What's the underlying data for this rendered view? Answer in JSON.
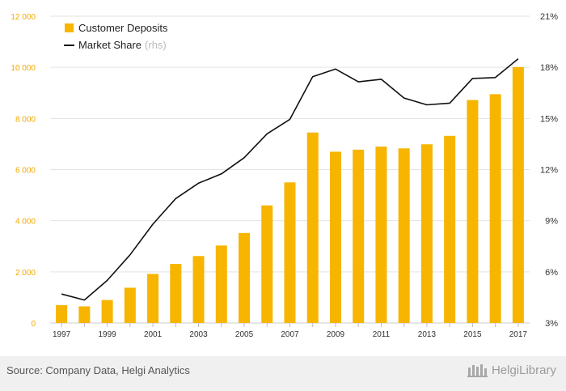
{
  "chart_data": {
    "type": "bar+line",
    "categories": [
      "1997",
      "1998",
      "1999",
      "2000",
      "2001",
      "2002",
      "2003",
      "2004",
      "2005",
      "2006",
      "2007",
      "2008",
      "2009",
      "2010",
      "2011",
      "2012",
      "2013",
      "2014",
      "2015",
      "2016",
      "2017"
    ],
    "x_tick_labels": [
      "1997",
      "1999",
      "2001",
      "2003",
      "2005",
      "2007",
      "2009",
      "2011",
      "2013",
      "2015",
      "2017"
    ],
    "series": [
      {
        "name": "Customer Deposits",
        "type": "bar",
        "axis": "left",
        "values": [
          700,
          650,
          900,
          1380,
          1920,
          2310,
          2620,
          3030,
          3520,
          4600,
          5500,
          7450,
          6700,
          6780,
          6900,
          6830,
          6990,
          7320,
          8720,
          8950,
          10010
        ],
        "color": "#F7B500"
      },
      {
        "name": "Market Share",
        "type": "line",
        "axis": "right",
        "values": [
          4.7,
          4.35,
          5.5,
          7.0,
          8.8,
          10.3,
          11.2,
          11.75,
          12.7,
          14.1,
          14.95,
          17.45,
          17.9,
          17.15,
          17.3,
          16.2,
          15.8,
          15.9,
          17.35,
          17.4,
          18.5
        ],
        "color": "#111111"
      }
    ],
    "y_left": {
      "min": 0,
      "max": 12000,
      "ticks": [
        0,
        2000,
        4000,
        6000,
        8000,
        10000,
        12000
      ],
      "tick_labels": [
        "0",
        "2 000",
        "4 000",
        "6 000",
        "8 000",
        "10 000",
        "12 000"
      ]
    },
    "y_right": {
      "min": 3,
      "max": 21,
      "ticks": [
        3,
        6,
        9,
        12,
        15,
        18,
        21
      ],
      "tick_labels": [
        "3%",
        "6%",
        "9%",
        "12%",
        "15%",
        "18%",
        "21%"
      ]
    },
    "legend": {
      "placement": "top-left",
      "items": [
        {
          "label": "Customer Deposits",
          "suffix": ""
        },
        {
          "label": "Market Share",
          "suffix": "(rhs)"
        }
      ]
    },
    "grid": true,
    "left_tick_color": "#F2A900",
    "axis_text_color": "#333333",
    "grid_color": "#e3e3e3"
  },
  "footer": {
    "source": "Source: Company Data, Helgi Analytics",
    "logo": "HelgiLibrary"
  }
}
